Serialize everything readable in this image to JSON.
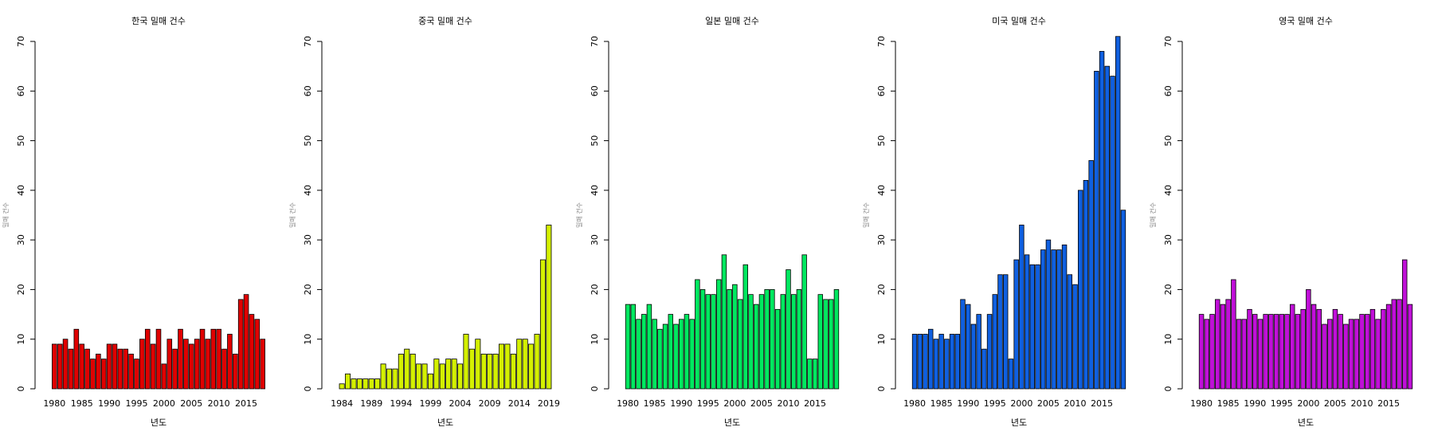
{
  "chart_data": [
    {
      "type": "bar",
      "title": "한국 밀매 건수",
      "xlabel": "년도",
      "ylabel": "밀매 건수",
      "color": "#e00000",
      "x": [
        1980,
        1981,
        1982,
        1983,
        1984,
        1985,
        1986,
        1987,
        1988,
        1989,
        1990,
        1991,
        1992,
        1993,
        1994,
        1995,
        1996,
        1997,
        1998,
        1999,
        2000,
        2001,
        2002,
        2003,
        2004,
        2005,
        2006,
        2007,
        2008,
        2009,
        2010,
        2011,
        2012,
        2013,
        2014,
        2015,
        2016,
        2017,
        2018
      ],
      "values": [
        9,
        9,
        10,
        8,
        12,
        9,
        8,
        6,
        7,
        6,
        9,
        9,
        8,
        8,
        7,
        6,
        10,
        12,
        9,
        12,
        5,
        10,
        8,
        12,
        10,
        9,
        10,
        12,
        10,
        12,
        12,
        8,
        11,
        7,
        18,
        19,
        15,
        14,
        10
      ],
      "xlim": [
        1978.5,
        2019.5
      ],
      "xticks": [
        1980,
        1985,
        1990,
        1995,
        2000,
        2005,
        2010,
        2015
      ],
      "ylim": [
        0,
        70
      ],
      "yticks": [
        0,
        10,
        20,
        30,
        40,
        50,
        60,
        70
      ]
    },
    {
      "type": "bar",
      "title": "중국 밀매 건수",
      "xlabel": "년도",
      "ylabel": "밀매 건수",
      "color": "#d4f000",
      "x": [
        1984,
        1985,
        1986,
        1987,
        1988,
        1989,
        1990,
        1991,
        1992,
        1993,
        1994,
        1995,
        1996,
        1997,
        1998,
        1999,
        2000,
        2001,
        2002,
        2003,
        2004,
        2005,
        2006,
        2007,
        2008,
        2009,
        2010,
        2011,
        2012,
        2013,
        2014,
        2015,
        2016,
        2017,
        2018,
        2019
      ],
      "values": [
        1,
        3,
        2,
        2,
        2,
        2,
        2,
        5,
        4,
        4,
        7,
        8,
        7,
        5,
        5,
        3,
        6,
        5,
        6,
        6,
        5,
        11,
        8,
        10,
        7,
        7,
        7,
        9,
        9,
        7,
        10,
        10,
        9,
        11,
        26,
        33
      ],
      "xlim": [
        1982.5,
        2020.5
      ],
      "xticks": [
        1984,
        1989,
        1994,
        1999,
        2004,
        2009,
        2014,
        2019
      ],
      "ylim": [
        0,
        70
      ],
      "yticks": [
        0,
        10,
        20,
        30,
        40,
        50,
        60,
        70
      ]
    },
    {
      "type": "bar",
      "title": "일본 밀매 건수",
      "xlabel": "년도",
      "ylabel": "밀매 건수",
      "color": "#00e860",
      "x": [
        1980,
        1981,
        1982,
        1983,
        1984,
        1985,
        1986,
        1987,
        1988,
        1989,
        1990,
        1991,
        1992,
        1993,
        1994,
        1995,
        1996,
        1997,
        1998,
        1999,
        2000,
        2001,
        2002,
        2003,
        2004,
        2005,
        2006,
        2007,
        2008,
        2009,
        2010,
        2011,
        2012,
        2013,
        2014,
        2015,
        2016,
        2017,
        2018,
        2019
      ],
      "values": [
        17,
        17,
        14,
        15,
        17,
        14,
        12,
        13,
        15,
        13,
        14,
        15,
        14,
        22,
        20,
        19,
        19,
        22,
        27,
        20,
        21,
        18,
        25,
        19,
        17,
        19,
        20,
        20,
        16,
        19,
        24,
        19,
        20,
        27,
        6,
        6,
        19,
        18,
        18,
        20
      ],
      "xlim": [
        1978.5,
        2020.5
      ],
      "xticks": [
        1980,
        1985,
        1990,
        1995,
        2000,
        2005,
        2010,
        2015
      ],
      "ylim": [
        0,
        70
      ],
      "yticks": [
        0,
        10,
        20,
        30,
        40,
        50,
        60,
        70
      ]
    },
    {
      "type": "bar",
      "title": "미국 밀매 건수",
      "xlabel": "년도",
      "ylabel": "밀매 건수",
      "color": "#1060e0",
      "x": [
        1980,
        1981,
        1982,
        1983,
        1984,
        1985,
        1986,
        1987,
        1988,
        1989,
        1990,
        1991,
        1992,
        1993,
        1994,
        1995,
        1996,
        1997,
        1998,
        1999,
        2000,
        2001,
        2002,
        2003,
        2004,
        2005,
        2006,
        2007,
        2008,
        2009,
        2010,
        2011,
        2012,
        2013,
        2014,
        2015,
        2016,
        2017,
        2018,
        2019
      ],
      "values": [
        11,
        11,
        11,
        12,
        10,
        11,
        10,
        11,
        11,
        18,
        17,
        13,
        15,
        8,
        15,
        19,
        23,
        23,
        6,
        26,
        33,
        27,
        25,
        25,
        28,
        30,
        28,
        28,
        29,
        23,
        21,
        40,
        42,
        46,
        64,
        68,
        65,
        63,
        71,
        36
      ],
      "xlim": [
        1978.5,
        2020.5
      ],
      "xticks": [
        1980,
        1985,
        1990,
        1995,
        2000,
        2005,
        2010,
        2015
      ],
      "ylim": [
        0,
        70
      ],
      "yticks": [
        0,
        10,
        20,
        30,
        40,
        50,
        60,
        70
      ]
    },
    {
      "type": "bar",
      "title": "영국 밀매 건수",
      "xlabel": "년도",
      "ylabel": "밀매 건수",
      "color": "#c010d8",
      "x": [
        1980,
        1981,
        1982,
        1983,
        1984,
        1985,
        1986,
        1987,
        1988,
        1989,
        1990,
        1991,
        1992,
        1993,
        1994,
        1995,
        1996,
        1997,
        1998,
        1999,
        2000,
        2001,
        2002,
        2003,
        2004,
        2005,
        2006,
        2007,
        2008,
        2009,
        2010,
        2011,
        2012,
        2013,
        2014,
        2015,
        2016,
        2017,
        2018,
        2019
      ],
      "values": [
        15,
        14,
        15,
        18,
        17,
        18,
        22,
        14,
        14,
        16,
        15,
        14,
        15,
        15,
        15,
        15,
        15,
        17,
        15,
        16,
        20,
        17,
        16,
        13,
        14,
        16,
        15,
        13,
        14,
        14,
        15,
        15,
        16,
        14,
        16,
        17,
        18,
        18,
        26,
        17
      ],
      "xlim": [
        1978.5,
        2020.5
      ],
      "xticks": [
        1980,
        1985,
        1990,
        1995,
        2000,
        2005,
        2010,
        2015
      ],
      "ylim": [
        0,
        70
      ],
      "yticks": [
        0,
        10,
        20,
        30,
        40,
        50,
        60,
        70
      ]
    }
  ]
}
